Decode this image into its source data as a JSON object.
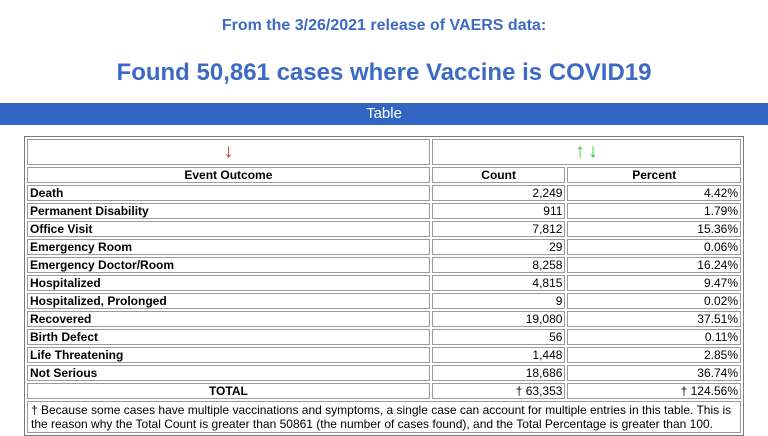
{
  "header": {
    "subtitle": "From the 3/26/2021 release of VAERS data:",
    "headline": "Found 50,861 cases where Vaccine is COVID19",
    "bar_title": "Table"
  },
  "table": {
    "columns": [
      "Event Outcome",
      "Count",
      "Percent"
    ],
    "sort_arrows": {
      "event_outcome": "↓",
      "count_up": "↑",
      "count_down": "↓"
    },
    "rows": [
      {
        "label": "Death",
        "count": "2,249",
        "percent": "4.42%"
      },
      {
        "label": "Permanent Disability",
        "count": "911",
        "percent": "1.79%"
      },
      {
        "label": "Office Visit",
        "count": "7,812",
        "percent": "15.36%"
      },
      {
        "label": "Emergency Room",
        "count": "29",
        "percent": "0.06%"
      },
      {
        "label": "Emergency Doctor/Room",
        "count": "8,258",
        "percent": "16.24%"
      },
      {
        "label": "Hospitalized",
        "count": "4,815",
        "percent": "9.47%"
      },
      {
        "label": "Hospitalized, Prolonged",
        "count": "9",
        "percent": "0.02%"
      },
      {
        "label": "Recovered",
        "count": "19,080",
        "percent": "37.51%"
      },
      {
        "label": "Birth Defect",
        "count": "56",
        "percent": "0.11%"
      },
      {
        "label": "Life Threatening",
        "count": "1,448",
        "percent": "2.85%"
      },
      {
        "label": "Not Serious",
        "count": "18,686",
        "percent": "36.74%"
      }
    ],
    "total": {
      "label": "TOTAL",
      "count": "† 63,353",
      "percent": "† 124.56%"
    },
    "footnote": "† Because some cases have multiple vaccinations and symptoms, a single case can account for multiple entries in this table. This is the reason why the Total Count is greater than 50861 (the number of cases found), and the Total Percentage is greater than 100."
  },
  "colors": {
    "title_blue": "#3c6ac4",
    "bar_blue": "#3366c2",
    "arrow_red": "#e02020",
    "arrow_green": "#2fc02f"
  }
}
